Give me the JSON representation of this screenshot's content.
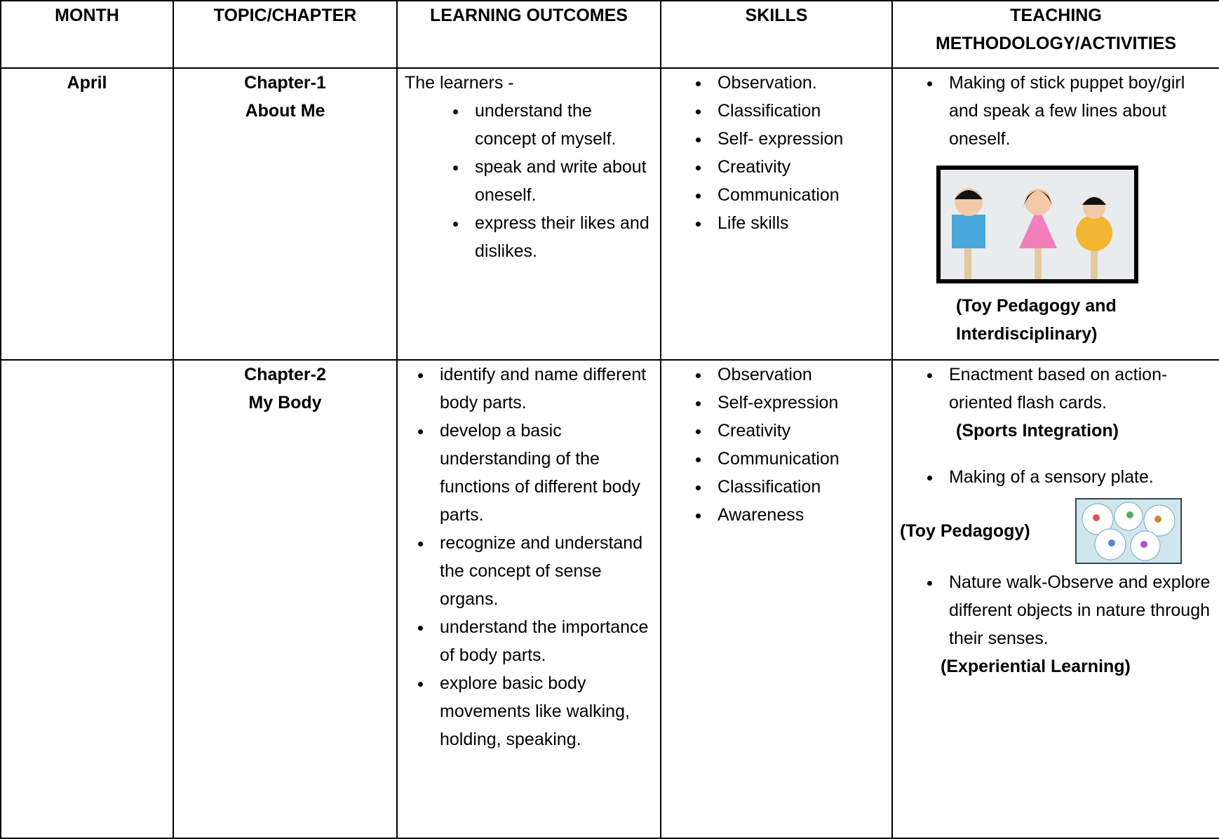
{
  "table": {
    "headers": [
      "MONTH",
      "TOPIC/CHAPTER",
      "LEARNING OUTCOMES",
      "SKILLS",
      "TEACHING METHODOLOGY/ACTIVITIES"
    ],
    "rows": [
      {
        "month": "April",
        "chapter": "Chapter-1",
        "topic": "About Me",
        "outcomes_intro": "The learners -",
        "outcomes": [
          "understand the concept of myself.",
          "speak and write about oneself.",
          "express their likes and dislikes."
        ],
        "skills": [
          "Observation.",
          "Classification",
          "Self- expression",
          "Creativity",
          "Communication",
          "Life skills"
        ],
        "activities": [
          {
            "text": "Making of stick puppet boy/girl and speak a few lines about oneself.",
            "tag": "(Toy Pedagogy and Interdisciplinary)"
          }
        ]
      },
      {
        "chapter": "Chapter-2",
        "topic": "My Body",
        "outcomes": [
          "identify and name different body parts.",
          "develop a basic understanding of the functions of different body parts.",
          "recognize and understand the concept of sense organs.",
          "understand the importance of body parts.",
          "explore basic body movements like walking, holding, speaking."
        ],
        "skills": [
          "Observation",
          "Self-expression",
          "Creativity",
          "Communication",
          "Classification",
          "Awareness"
        ],
        "activities": [
          {
            "text": "Enactment based on action-oriented flash cards.",
            "tag": "(Sports Integration)"
          },
          {
            "text": "Making of a sensory plate.",
            "tag": "(Toy Pedagogy)"
          },
          {
            "text": "Nature walk-Observe and explore different objects in nature through their senses.",
            "tag": "(Experiential Learning)"
          }
        ]
      }
    ]
  }
}
